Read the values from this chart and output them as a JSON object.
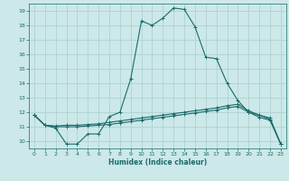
{
  "xlabel": "Humidex (Indice chaleur)",
  "background_color": "#cce8e8",
  "grid_color": "#aacece",
  "line_color": "#1a6b6b",
  "xlim": [
    -0.5,
    23.5
  ],
  "ylim": [
    9.5,
    19.5
  ],
  "xticks": [
    0,
    1,
    2,
    3,
    4,
    5,
    6,
    7,
    8,
    9,
    10,
    11,
    12,
    13,
    14,
    15,
    16,
    17,
    18,
    19,
    20,
    21,
    22,
    23
  ],
  "yticks": [
    10,
    11,
    12,
    13,
    14,
    15,
    16,
    17,
    18,
    19
  ],
  "line1_x": [
    0,
    1,
    2,
    3,
    4,
    5,
    6,
    7,
    8,
    9,
    10,
    11,
    12,
    13,
    14,
    15,
    16,
    17,
    18,
    19,
    20,
    21,
    22,
    23
  ],
  "line1_y": [
    11.8,
    11.1,
    10.9,
    9.8,
    9.8,
    10.5,
    10.5,
    11.7,
    12.0,
    14.3,
    18.3,
    18.0,
    18.5,
    19.2,
    19.1,
    17.9,
    15.8,
    15.7,
    14.0,
    12.8,
    12.0,
    11.8,
    11.5,
    9.8
  ],
  "line2_x": [
    0,
    1,
    2,
    3,
    4,
    5,
    6,
    7,
    8,
    9,
    10,
    11,
    12,
    13,
    14,
    15,
    16,
    17,
    18,
    19,
    20,
    21,
    22,
    23
  ],
  "line2_y": [
    11.8,
    11.1,
    11.05,
    11.1,
    11.1,
    11.15,
    11.2,
    11.3,
    11.4,
    11.5,
    11.6,
    11.7,
    11.8,
    11.9,
    12.0,
    12.1,
    12.2,
    12.3,
    12.45,
    12.55,
    12.1,
    11.8,
    11.6,
    9.8
  ],
  "line3_x": [
    0,
    1,
    2,
    3,
    4,
    5,
    6,
    7,
    8,
    9,
    10,
    11,
    12,
    13,
    14,
    15,
    16,
    17,
    18,
    19,
    20,
    21,
    22,
    23
  ],
  "line3_y": [
    11.8,
    11.1,
    11.0,
    11.0,
    11.0,
    11.05,
    11.1,
    11.15,
    11.25,
    11.35,
    11.45,
    11.55,
    11.65,
    11.75,
    11.85,
    11.95,
    12.05,
    12.15,
    12.3,
    12.4,
    12.0,
    11.65,
    11.45,
    9.8
  ]
}
